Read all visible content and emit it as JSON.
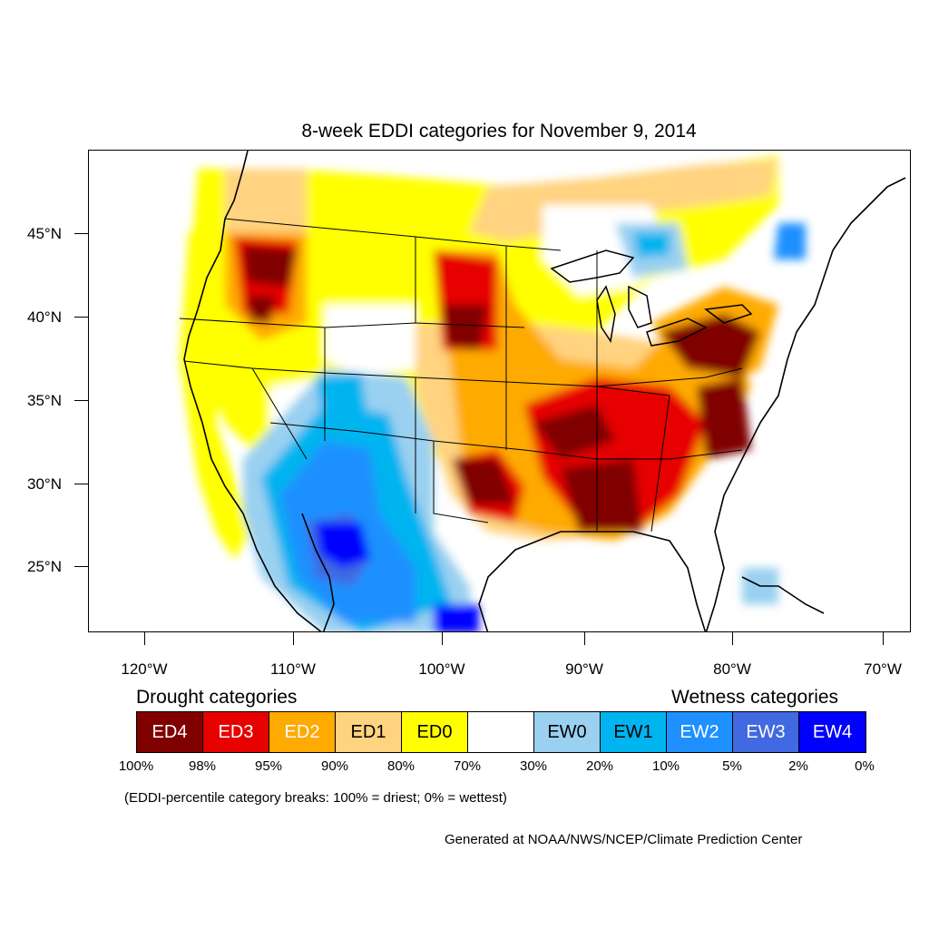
{
  "title": "8-week EDDI categories for November 9, 2014",
  "lat_labels": [
    "45°N",
    "40°N",
    "35°N",
    "30°N",
    "25°N"
  ],
  "lon_labels": [
    "120°W",
    "110°W",
    "100°W",
    "90°W",
    "80°W",
    "70°W"
  ],
  "legend": {
    "drought_heading": "Drought categories",
    "wetness_heading": "Wetness categories",
    "categories": [
      {
        "label": "ED4",
        "color": "#800000",
        "text_color": "#ffffff"
      },
      {
        "label": "ED3",
        "color": "#e60000",
        "text_color": "#ffffff"
      },
      {
        "label": "ED2",
        "color": "#ffaa00",
        "text_color": "#ffffff"
      },
      {
        "label": "ED1",
        "color": "#ffd37f",
        "text_color": "#000000"
      },
      {
        "label": "ED0",
        "color": "#ffff00",
        "text_color": "#000000"
      },
      {
        "label": "",
        "color": "#ffffff",
        "text_color": "#000000"
      },
      {
        "label": "EW0",
        "color": "#9ad0f0",
        "text_color": "#000000"
      },
      {
        "label": "EW1",
        "color": "#00b4f0",
        "text_color": "#000000"
      },
      {
        "label": "EW2",
        "color": "#1e90ff",
        "text_color": "#ffffff"
      },
      {
        "label": "EW3",
        "color": "#4169e1",
        "text_color": "#ffffff"
      },
      {
        "label": "EW4",
        "color": "#0000ff",
        "text_color": "#ffffff"
      }
    ],
    "breaks": [
      "100%",
      "98%",
      "95%",
      "90%",
      "80%",
      "70%",
      "30%",
      "20%",
      "10%",
      "5%",
      "2%",
      "0%"
    ]
  },
  "note": "(EDDI-percentile category breaks: 100% = driest; 0% = wettest)",
  "credit": "Generated at NOAA/NWS/NCEP/Climate Prediction Center"
}
